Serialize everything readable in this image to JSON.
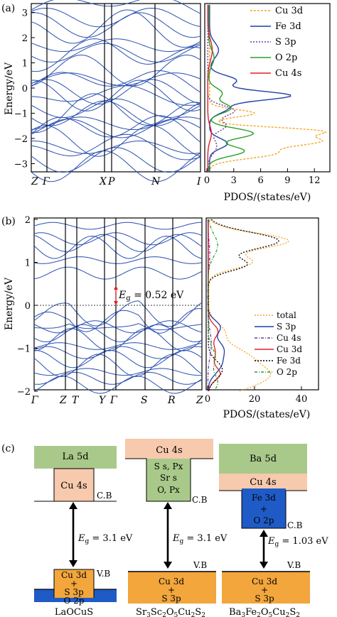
{
  "figure": {
    "panel_labels": [
      "(a)",
      "(b)",
      "(c)"
    ]
  },
  "panel_a": {
    "band_ylabel": "Energy/eV",
    "band_ticks": [
      "3",
      "2",
      "1",
      "0",
      "-1",
      "-2",
      "-3"
    ],
    "kpoints": [
      "Z",
      "Γ",
      "X",
      "P",
      "N",
      "I"
    ],
    "pdos_xlabel": "PDOS/(states/eV)",
    "pdos_ticks": [
      "0",
      "3",
      "6",
      "9",
      "12"
    ],
    "legend": [
      "Cu 3d",
      "Fe 3d",
      "S 3p",
      "O 2p",
      "Cu 4s"
    ]
  },
  "panel_b": {
    "band_ylabel": "Energy/eV",
    "band_ticks": [
      "2",
      "1",
      "0",
      "-1",
      "-2"
    ],
    "kpoints": [
      "Γ",
      "Z",
      "T",
      "Y",
      "Γ",
      "S",
      "R",
      "Z"
    ],
    "gap_label": "E",
    "gap_sub": "g",
    "gap_value": " = 0.52 eV",
    "pdos_xlabel": "PDOS/(states/eV)",
    "pdos_ticks": [
      "0",
      "20",
      "40"
    ],
    "legend": [
      "total",
      "S 3p",
      "Cu 4s",
      "Cu 3d",
      "Fe 3d",
      "O 2p"
    ]
  },
  "panel_c": {
    "compounds": [
      {
        "name": "LaOCuS",
        "top": "La 5d",
        "cb_box": "Cu 4s",
        "cb_tag": "C.B",
        "gap_value": " = 3.1 eV",
        "vb_tag": "V.B",
        "vb_lines": [
          "Cu 3d",
          "+",
          "S 3p"
        ],
        "bottom": "O 2p"
      },
      {
        "name": "Sr3Sc2O5Cu2S2",
        "top": "Cu 4s",
        "cb_lines": [
          "S s, Px",
          "Sr s",
          "O, Px"
        ],
        "cb_tag": "C.B",
        "gap_value": " = 3.1 eV",
        "vb_tag": "V.B",
        "vb_lines": [
          "Cu 3d",
          "+",
          "S 3p"
        ]
      },
      {
        "name": "Ba3Fe2O5Cu2S2",
        "top": "Ba 5d",
        "mid": "Cu 4s",
        "cb_lines": [
          "Fe 3d",
          "+",
          "O 2p"
        ],
        "cb_tag": "C.B",
        "gap_value": " = 1.03 eV",
        "vb_tag": "V.B",
        "vb_lines": [
          "Cu 3d",
          "+",
          "S 3p"
        ]
      }
    ],
    "gap_symbol": "E",
    "gap_sub": "g"
  },
  "colors": {
    "band": "#2a4fb0",
    "cu3d": "#f5a623",
    "fe3d": "#1f3fa8",
    "s3p": "#6a3d9a",
    "o2p": "#2ca02c",
    "cu4s": "#e0202a",
    "total": "#f5a623",
    "green_box": "#a9c98a",
    "peach_box": "#f7c9ad",
    "orange_box": "#f2a63c",
    "blue_box": "#1f5bc6"
  }
}
